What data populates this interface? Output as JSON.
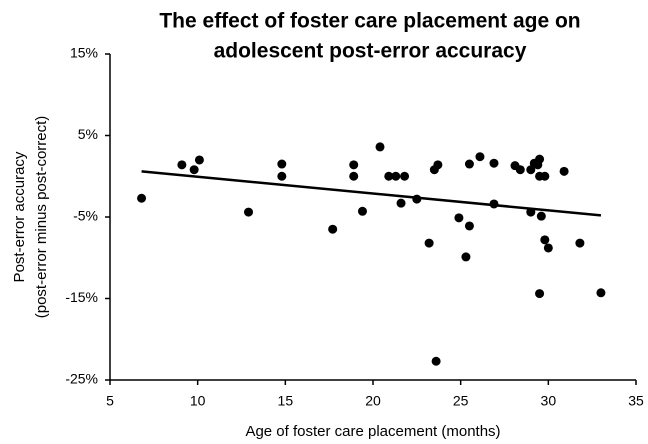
{
  "chart_data": {
    "type": "scatter",
    "title": [
      "The effect of foster care placement age on",
      "adolescent post-error accuracy"
    ],
    "xlabel": "Age of foster care placement (months)",
    "ylabel": [
      "Post-error accuracy",
      "(post-error minus post-correct)"
    ],
    "xlim": [
      5,
      35
    ],
    "xticks": [
      5,
      10,
      15,
      20,
      25,
      30,
      35
    ],
    "ylim": [
      -25,
      15
    ],
    "yticks": [
      {
        "value": -25,
        "label": "-25%"
      },
      {
        "value": -15,
        "label": "-15%"
      },
      {
        "value": -5,
        "label": "-5%"
      },
      {
        "value": 5,
        "label": "5%"
      },
      {
        "value": 15,
        "label": "15%"
      }
    ],
    "color": "#000000",
    "x": [
      6.8,
      9.1,
      9.8,
      10.1,
      12.9,
      14.8,
      14.8,
      17.7,
      18.9,
      18.9,
      19.4,
      20.4,
      20.9,
      21.3,
      21.6,
      21.8,
      22.5,
      23.2,
      23.5,
      23.7,
      23.6,
      24.9,
      25.3,
      25.5,
      25.5,
      26.1,
      26.9,
      26.9,
      28.1,
      28.4,
      29.0,
      29.0,
      29.2,
      29.4,
      29.5,
      29.5,
      29.6,
      29.8,
      29.8,
      30.0,
      29.5,
      30.9,
      31.8,
      33.0
    ],
    "values": [
      -2.7,
      1.4,
      0.8,
      2.0,
      -4.4,
      1.5,
      0.0,
      -6.5,
      1.4,
      0.0,
      -4.3,
      3.6,
      0.0,
      0.0,
      -3.3,
      0.0,
      -2.8,
      -8.2,
      0.8,
      1.4,
      -22.7,
      -5.1,
      -9.9,
      1.5,
      -6.1,
      2.4,
      1.6,
      -3.4,
      1.3,
      0.8,
      0.8,
      -4.4,
      1.6,
      1.4,
      2.1,
      0.0,
      -4.9,
      0.0,
      -7.8,
      -8.8,
      -14.4,
      0.6,
      -8.2,
      -14.3
    ],
    "trendline": {
      "x": [
        6.8,
        33.0
      ],
      "values": [
        0.6,
        -4.8
      ]
    }
  }
}
